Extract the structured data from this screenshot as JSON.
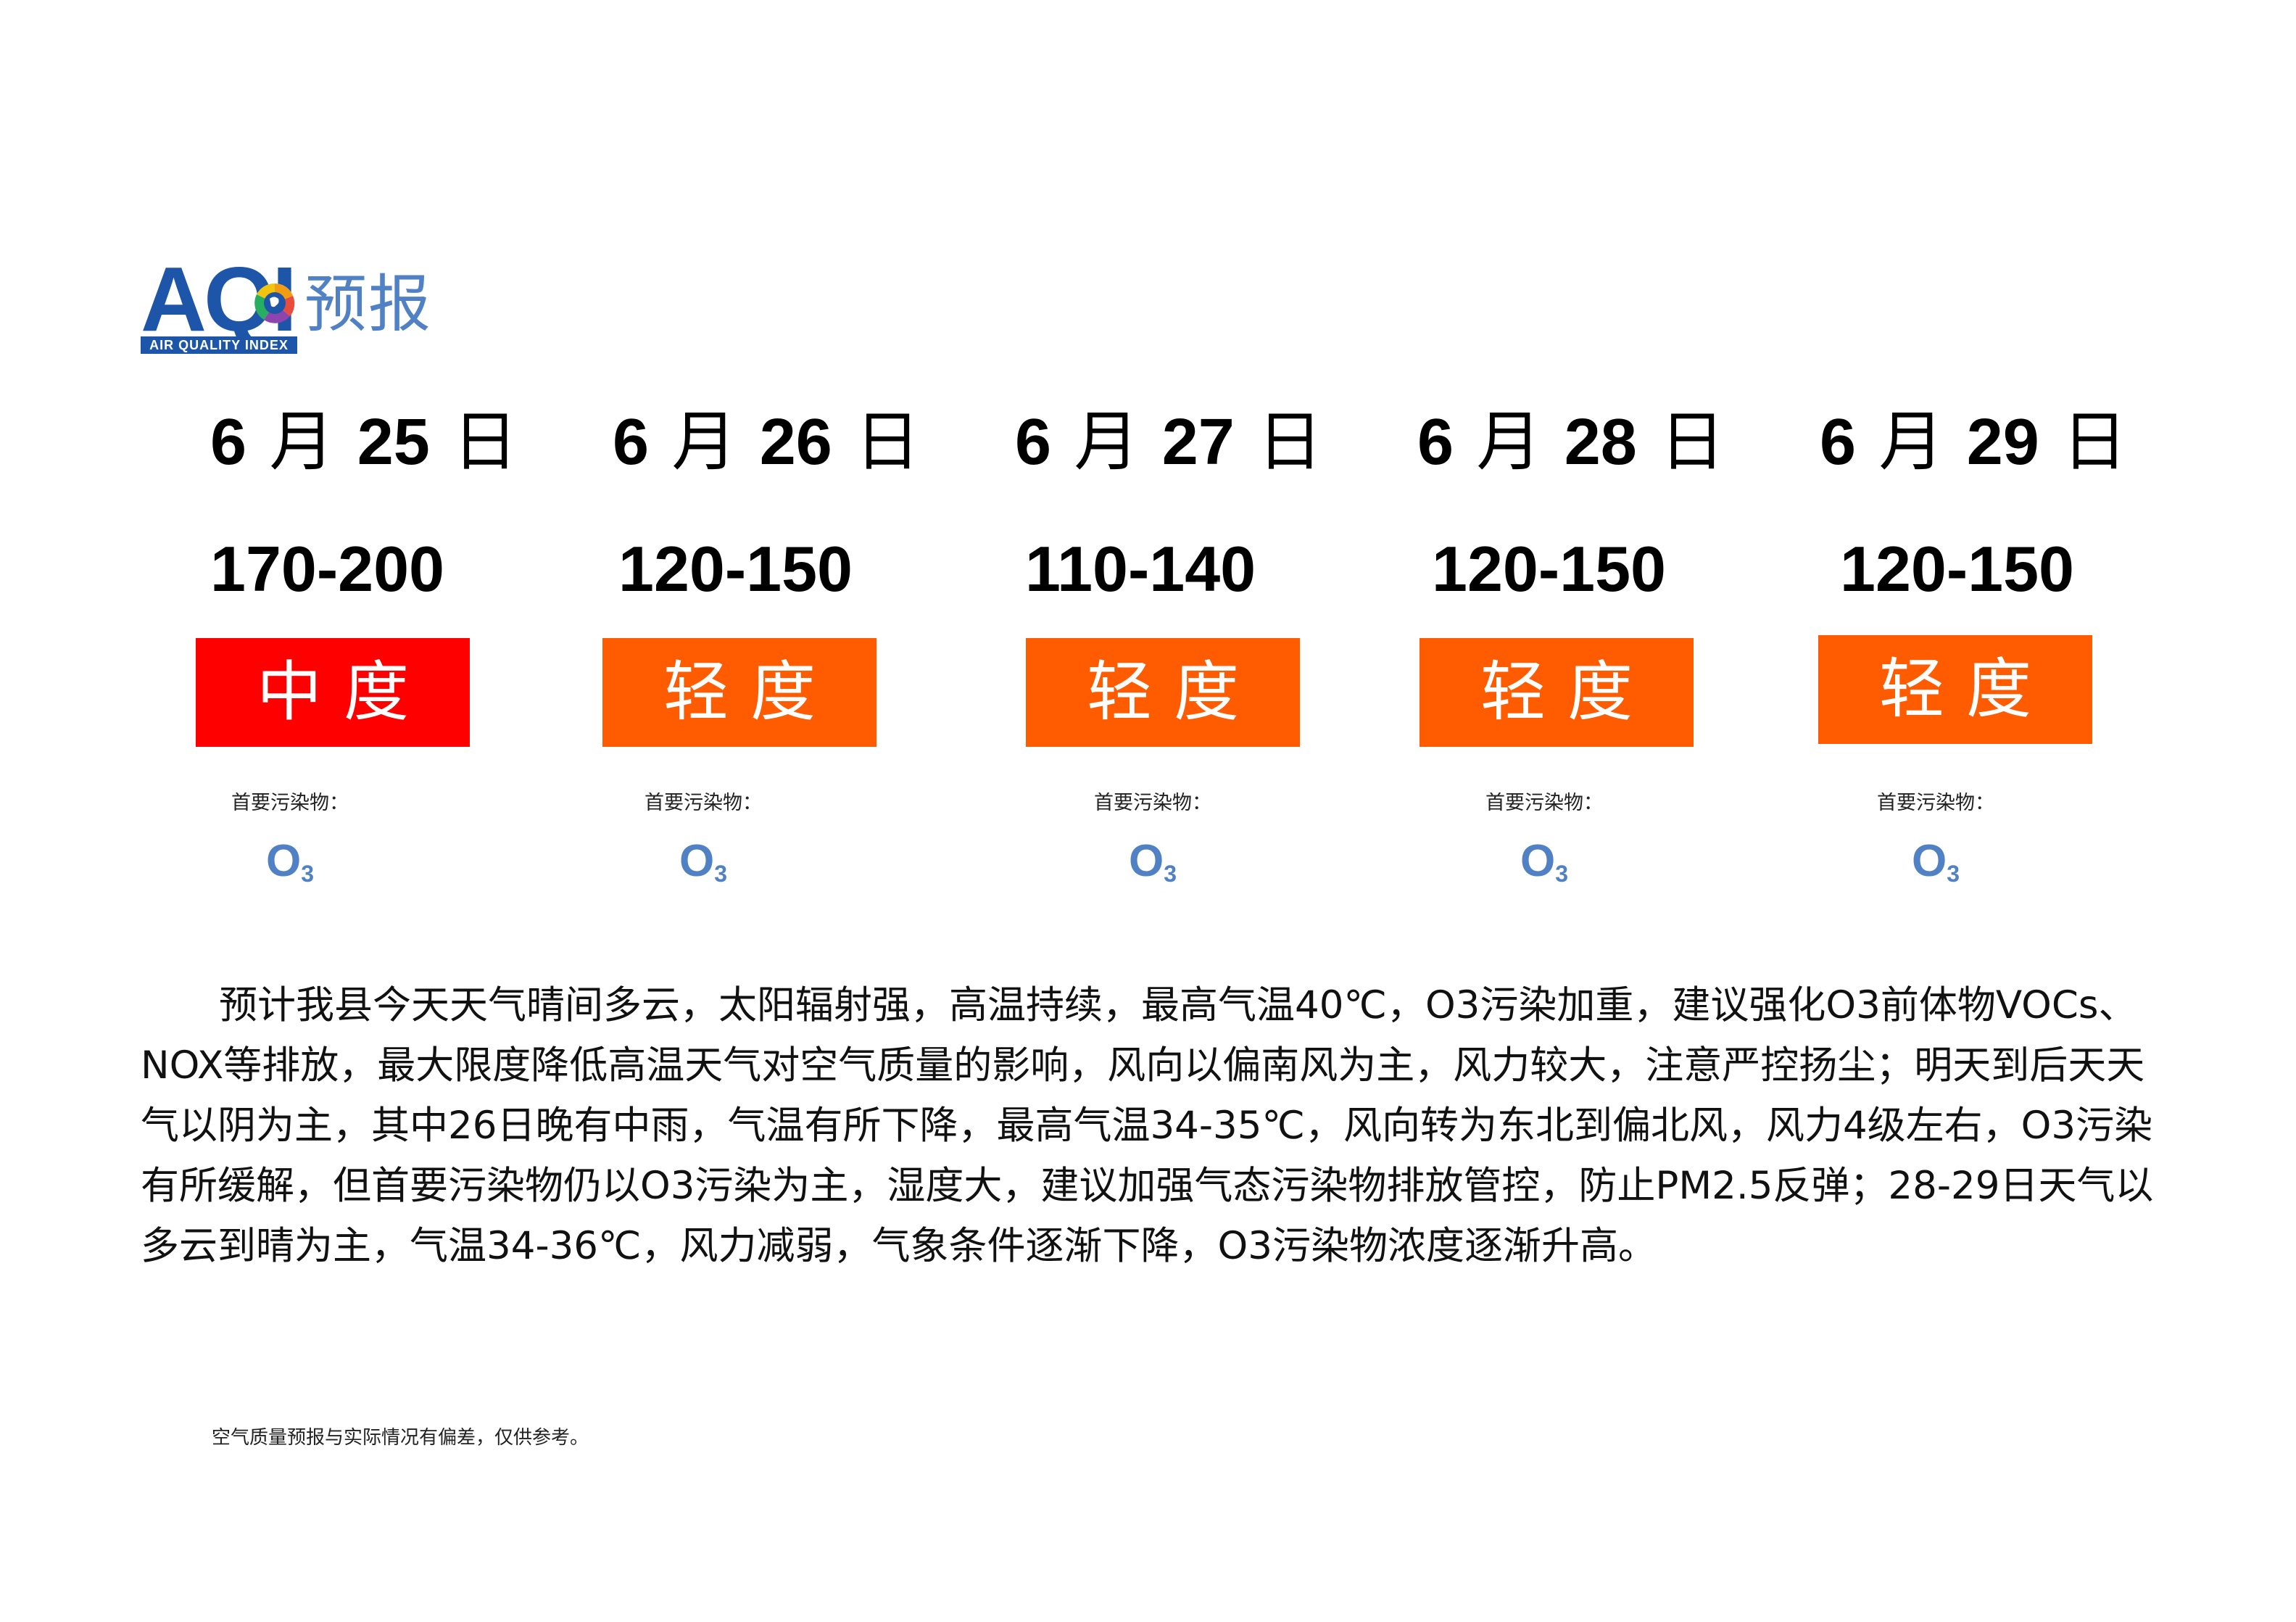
{
  "header": {
    "logo_text": "AQI",
    "logo_tagline": "AIR QUALITY INDEX",
    "title": "预报",
    "brand_color": "#1d56a8",
    "title_color": "#4f81c4"
  },
  "forecast": [
    {
      "month": "6",
      "month_char": "月",
      "day": "25",
      "day_char": "日",
      "aqi_range": "170-200",
      "level": "中度",
      "level_color": "#ff0000",
      "pollutant_label": "首要污染物：",
      "pollutant_base": "O",
      "pollutant_sub": "3"
    },
    {
      "month": "6",
      "month_char": "月",
      "day": "26",
      "day_char": "日",
      "aqi_range": "120-150",
      "level": "轻度",
      "level_color": "#ff5b00",
      "pollutant_label": "首要污染物：",
      "pollutant_base": "O",
      "pollutant_sub": "3"
    },
    {
      "month": "6",
      "month_char": "月",
      "day": "27",
      "day_char": "日",
      "aqi_range": "110-140",
      "level": "轻度",
      "level_color": "#ff5b00",
      "pollutant_label": "首要污染物：",
      "pollutant_base": "O",
      "pollutant_sub": "3"
    },
    {
      "month": "6",
      "month_char": "月",
      "day": "28",
      "day_char": "日",
      "aqi_range": "120-150",
      "level": "轻度",
      "level_color": "#ff5b00",
      "pollutant_label": "首要污染物：",
      "pollutant_base": "O",
      "pollutant_sub": "3"
    },
    {
      "month": "6",
      "month_char": "月",
      "day": "29",
      "day_char": "日",
      "aqi_range": "120-150",
      "level": "轻度",
      "level_color": "#ff5b00",
      "pollutant_label": "首要污染物：",
      "pollutant_base": "O",
      "pollutant_sub": "3"
    }
  ],
  "description": "预计我县今天天气晴间多云，太阳辐射强，高温持续，最高气温40℃，O3污染加重，建议强化O3前体物VOCs、NOX等排放，最大限度降低高温天气对空气质量的影响，风向以偏南风为主，风力较大，注意严控扬尘；明天到后天天气以阴为主，其中26日晚有中雨，气温有所下降，最高气温34-35℃，风向转为东北到偏北风，风力4级左右，O3污染有所缓解，但首要污染物仍以O3污染为主，湿度大，建议加强气态污染物排放管控，防止PM2.5反弹；28-29日天气以多云到晴为主，气温34-36℃，风力减弱，气象条件逐渐下降，O3污染物浓度逐渐升高。",
  "footnote": "空气质量预报与实际情况有偏差，仅供参考。"
}
